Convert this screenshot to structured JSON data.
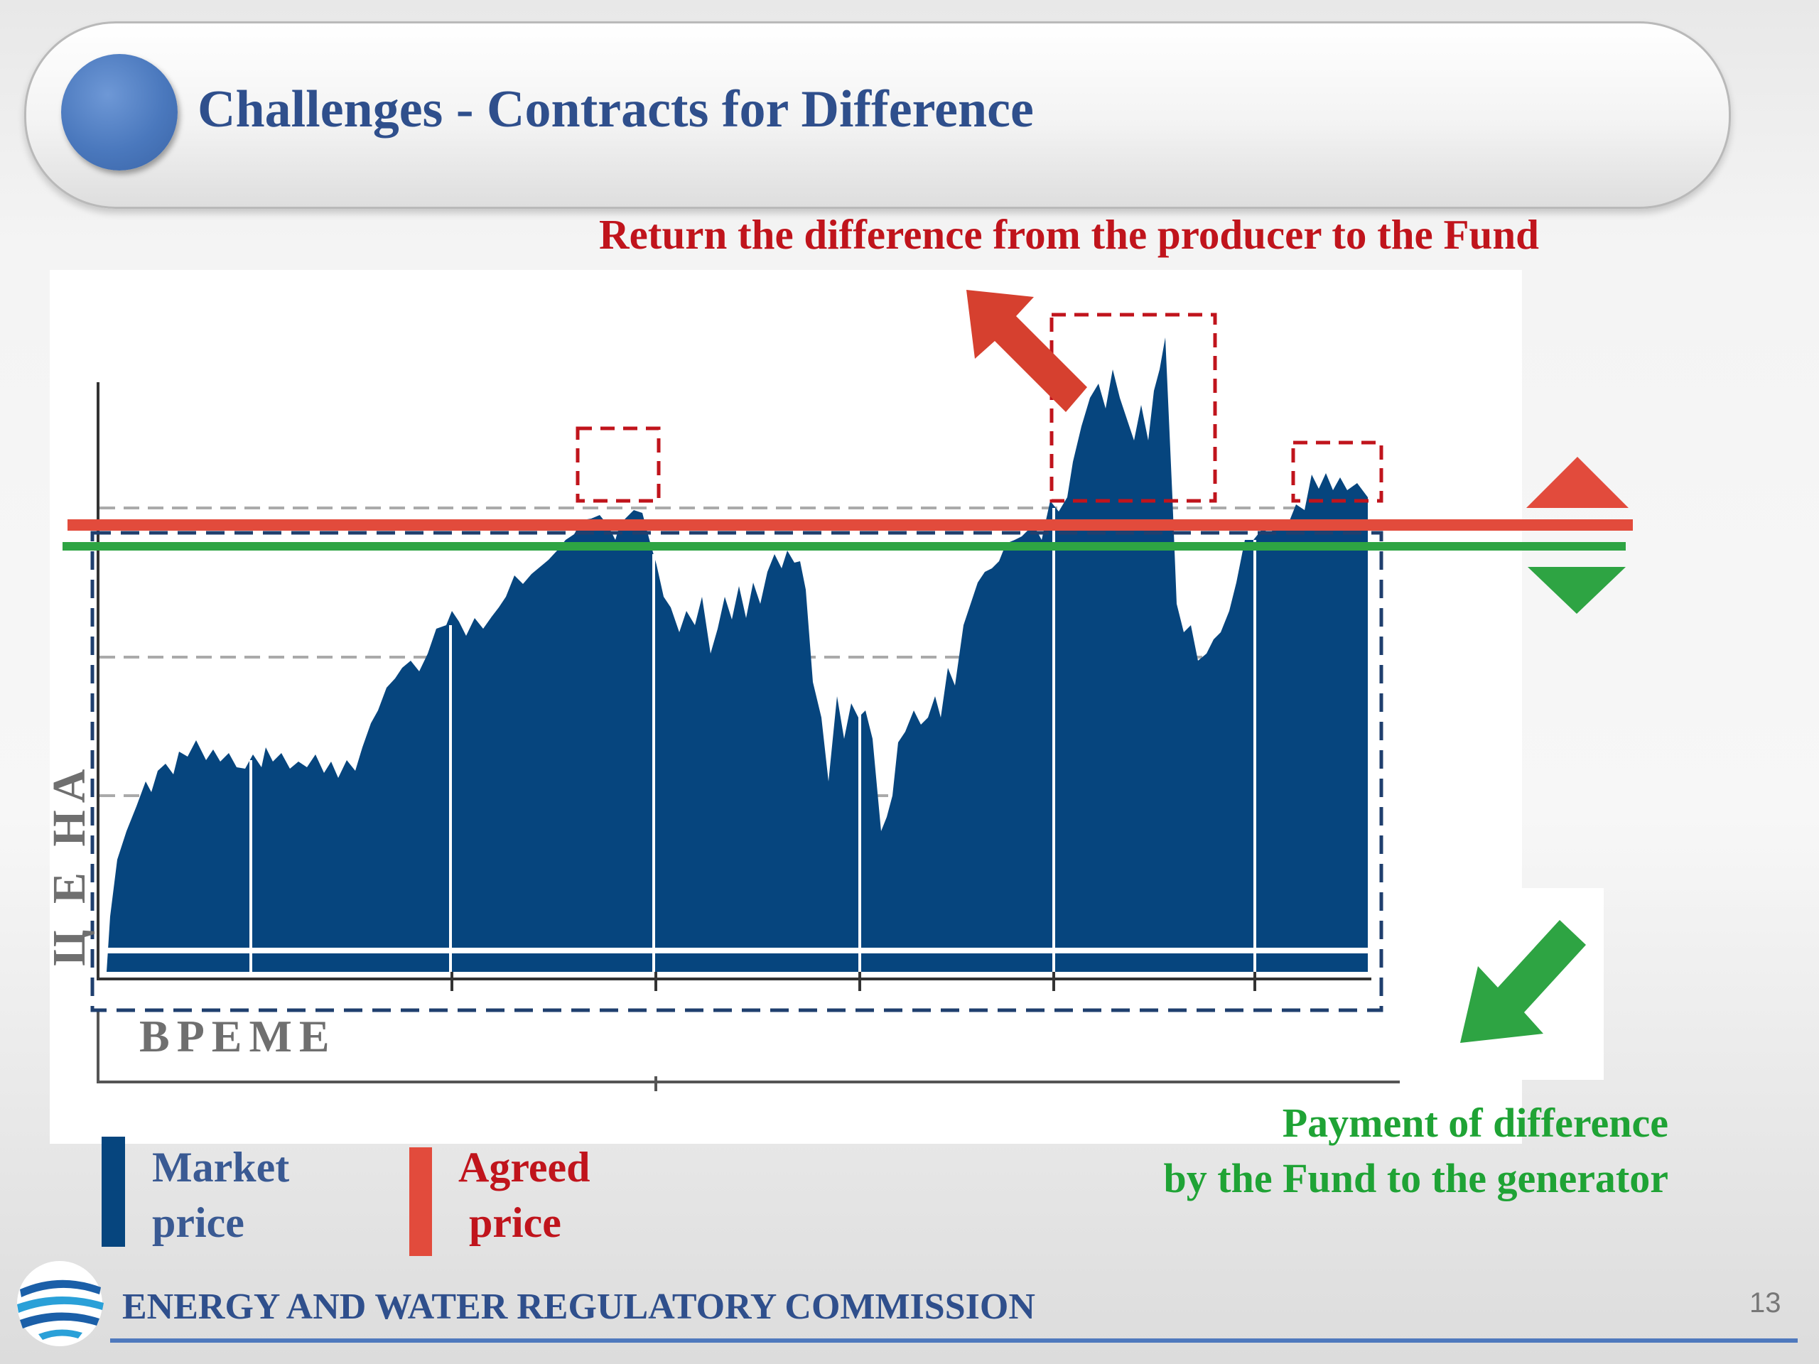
{
  "slide": {
    "title": "Challenges - Contracts for Difference",
    "page_number": "13"
  },
  "callouts": {
    "top": "Return the difference from the producer to the Fund",
    "bottom_line1": "Payment of difference",
    "bottom_line2": "by the Fund to the generator"
  },
  "axes": {
    "y_label": "Ц Е НА",
    "x_label": "ВРЕМЕ"
  },
  "legend": {
    "market_line1": "Market",
    "market_line2": "price",
    "agreed_line1": "Agreed",
    "agreed_line2": " price"
  },
  "footer": {
    "organization": "ENERGY AND WATER REGULATORY COMMISSION"
  },
  "colors": {
    "market": "#06457e",
    "agreed": "#e24b3c",
    "green": "#2ea443",
    "title": "#2f4f8c",
    "red_text": "#c0141c"
  },
  "icons": [
    "up-triangle-icon",
    "down-triangle-icon",
    "up-left-arrow-icon",
    "down-left-arrow-icon",
    "commission-logo-icon"
  ]
}
